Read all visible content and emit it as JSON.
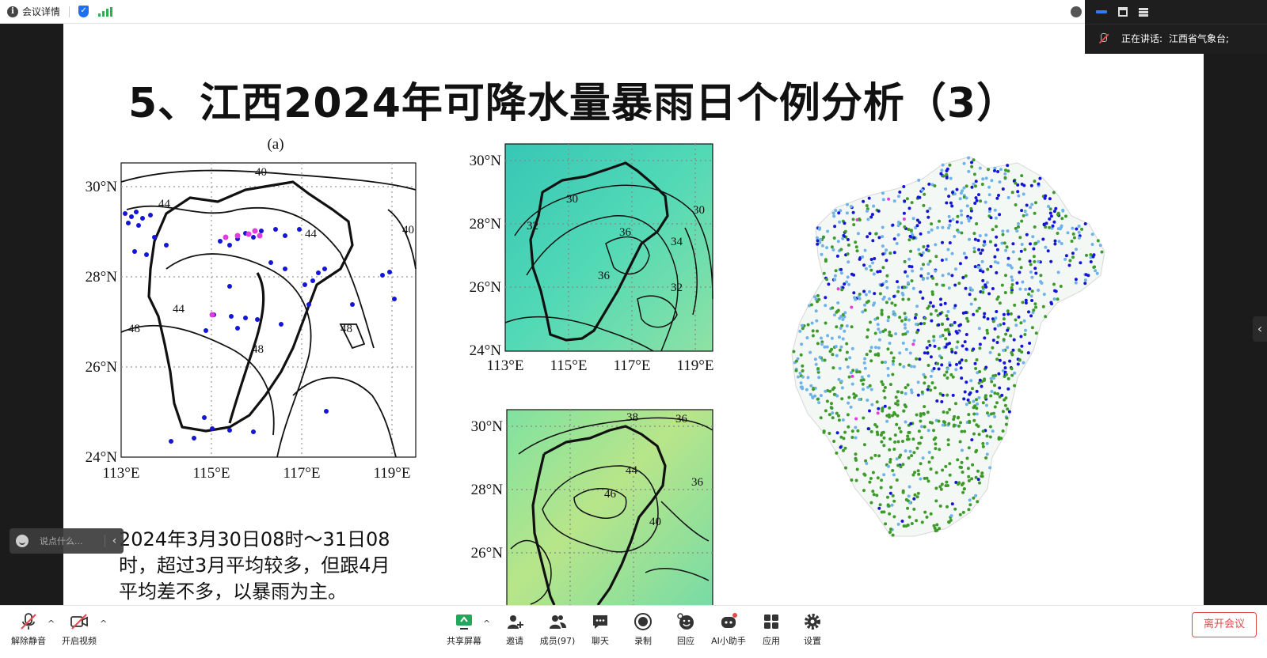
{
  "topbar": {
    "meeting_details": "会议详情"
  },
  "speaker": {
    "label": "正在讲话:",
    "name": "江西省气象台;"
  },
  "slide": {
    "title": "5、江西2024年可降水量暴雨日个例分析（3）",
    "caption": "2024年3月30日08时～31日08时，超过3月平均较多，但跟4月平均差不多，以暴雨为主。",
    "panel_a_label": "(a)",
    "lat_labels_a": [
      "30°N",
      "28°N",
      "26°N",
      "24°N"
    ],
    "lon_labels_a": [
      "113°E",
      "115°E",
      "117°E",
      "119°E"
    ],
    "lat_labels_b": [
      "30°N",
      "28°N",
      "26°N",
      "24°N"
    ],
    "lon_labels_b": [
      "113°E",
      "115°E",
      "117°E",
      "119°E"
    ],
    "lat_labels_c": [
      "30°N",
      "28°N",
      "26°N"
    ],
    "contour_labels_a": [
      "40",
      "44",
      "48",
      "44",
      "40",
      "44",
      "48",
      "48"
    ],
    "contour_labels_b": [
      "32",
      "30",
      "36",
      "36",
      "30",
      "34",
      "32"
    ],
    "contour_labels_c": [
      "38",
      "36",
      "46",
      "44",
      "40",
      "36"
    ],
    "colors": {
      "dot_blue": "#1515d6",
      "dot_light": "#6fb3ea",
      "dot_green": "#3d9a2b",
      "dot_magenta": "#e23ce0",
      "accent": "#2f7cf6",
      "danger": "#e24b4b"
    }
  },
  "chat": {
    "placeholder": "说点什么..."
  },
  "toolbar": {
    "unmute": "解除静音",
    "start_video": "开启视频",
    "share_screen": "共享屏幕",
    "invite": "邀请",
    "members": "成员(97)",
    "chat": "聊天",
    "record": "录制",
    "reactions": "回应",
    "ai_assistant": "AI小助手",
    "apps": "应用",
    "settings": "设置",
    "leave": "离开会议"
  },
  "icons": [
    "info-icon",
    "shield-icon",
    "signal-icon",
    "minimize-icon",
    "window-icon",
    "menu-icon",
    "muted-mic-icon",
    "smile-icon",
    "chevron-left-icon",
    "video-off-icon",
    "share-screen-icon",
    "invite-icon",
    "members-icon",
    "chat-icon",
    "record-icon",
    "reaction-icon",
    "ai-assistant-icon",
    "apps-icon",
    "settings-icon"
  ]
}
